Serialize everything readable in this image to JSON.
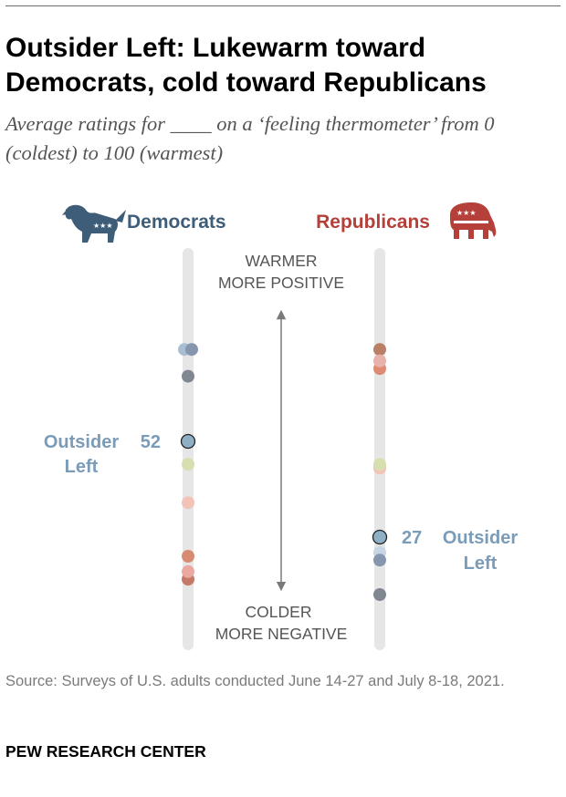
{
  "header": {
    "title": "Outsider Left: Lukewarm toward Democrats, cold toward Republicans",
    "subtitle": "Average ratings for ____ on a ‘feeling thermometer’ from 0 (coldest) to 100 (warmest)"
  },
  "chart_data": {
    "type": "scatter",
    "title": "Outsider Left: Lukewarm toward Democrats, cold toward Republicans",
    "subtitle": "Average ratings for ____ on a ‘feeling thermometer’ from 0 (coldest) to 100 (warmest)",
    "axis_labels": {
      "top_line1": "WARMER",
      "top_line2": "MORE POSITIVE",
      "bottom_line1": "COLDER",
      "bottom_line2": "MORE NEGATIVE"
    },
    "ylim": [
      0,
      100
    ],
    "columns": [
      {
        "name": "Democrats",
        "color": "#3e5d78",
        "icon": "donkey-icon",
        "points": [
          {
            "value": 76,
            "color": "#a9bfd1"
          },
          {
            "value": 76,
            "color": "#8696ae"
          },
          {
            "value": 69,
            "color": "#808791"
          },
          {
            "value": 52,
            "color": "#8fafc5",
            "highlight": true,
            "label": "Outsider Left",
            "value_label": "52"
          },
          {
            "value": 46,
            "color": "#d7dfb0"
          },
          {
            "value": 36,
            "color": "#f3c3b8"
          },
          {
            "value": 22,
            "color": "#d98a72"
          },
          {
            "value": 16,
            "color": "#c57a68"
          },
          {
            "value": 18,
            "color": "#eaa8a1"
          }
        ]
      },
      {
        "name": "Republicans",
        "color": "#b5403a",
        "icon": "elephant-icon",
        "points": [
          {
            "value": 76,
            "color": "#b98067"
          },
          {
            "value": 71,
            "color": "#df8a73"
          },
          {
            "value": 73,
            "color": "#e8b1aa"
          },
          {
            "value": 45,
            "color": "#f3c3b8"
          },
          {
            "value": 46,
            "color": "#d7dfb0"
          },
          {
            "value": 27,
            "color": "#8fafc5",
            "highlight": true,
            "label": "Outsider Left",
            "value_label": "27"
          },
          {
            "value": 23,
            "color": "#c7d6e3"
          },
          {
            "value": 21,
            "color": "#8696ae"
          },
          {
            "value": 12,
            "color": "#808791"
          }
        ]
      }
    ],
    "source": "Source: Surveys of U.S. adults conducted June 14-27 and July 8-18, 2021."
  },
  "footer": {
    "source": "Source: Surveys of U.S. adults conducted June 14-27 and July 8-18, 2021.",
    "brand": "PEW RESEARCH CENTER"
  }
}
